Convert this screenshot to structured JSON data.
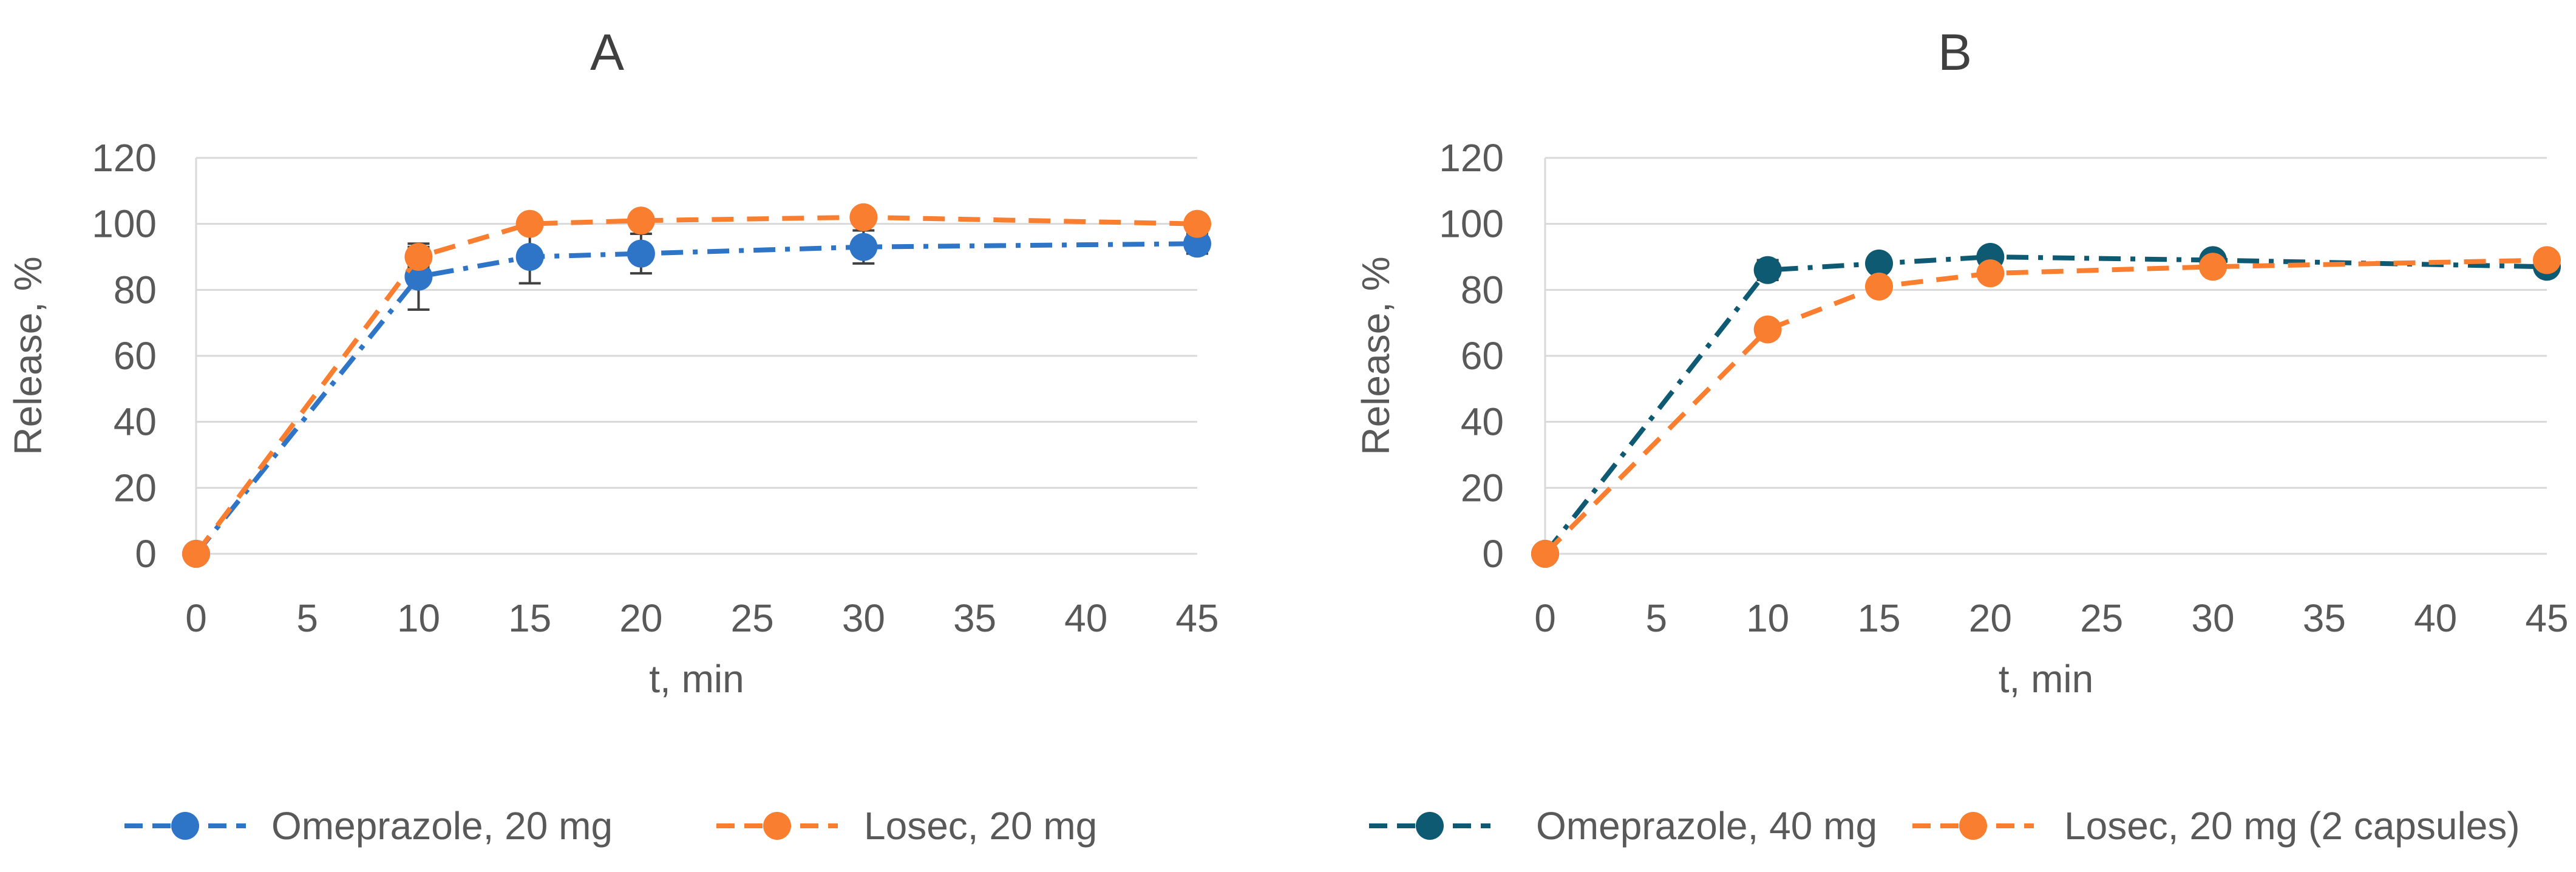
{
  "chart_data": [
    {
      "type": "line",
      "title": "A",
      "xlabel": "t, min",
      "ylabel": "Release, %",
      "xlim": [
        0,
        45
      ],
      "ylim": [
        0,
        120
      ],
      "xticks": [
        0,
        5,
        10,
        15,
        20,
        25,
        30,
        35,
        40,
        45
      ],
      "yticks": [
        0,
        20,
        40,
        60,
        80,
        100,
        120
      ],
      "grid": true,
      "legend_position": "bottom",
      "series": [
        {
          "name": "Omeprazole, 20 mg",
          "color": "#2e75c8",
          "line_style": "dash-dot",
          "x": [
            0,
            10,
            15,
            20,
            30,
            45
          ],
          "y": [
            0,
            84,
            90,
            91,
            93,
            94
          ],
          "error": [
            0,
            10,
            8,
            6,
            5,
            3
          ]
        },
        {
          "name": "Losec, 20 mg",
          "color": "#f97e30",
          "line_style": "dash",
          "x": [
            0,
            10,
            15,
            20,
            30,
            45
          ],
          "y": [
            0,
            90,
            100,
            101,
            102,
            100
          ],
          "error": [
            0,
            3,
            1,
            1,
            1,
            1
          ]
        }
      ]
    },
    {
      "type": "line",
      "title": "B",
      "xlabel": "t, min",
      "ylabel": "Release, %",
      "xlim": [
        0,
        45
      ],
      "ylim": [
        0,
        120
      ],
      "xticks": [
        0,
        5,
        10,
        15,
        20,
        25,
        30,
        35,
        40,
        45
      ],
      "yticks": [
        0,
        20,
        40,
        60,
        80,
        100,
        120
      ],
      "grid": true,
      "legend_position": "bottom",
      "series": [
        {
          "name": "Omeprazole, 40 mg",
          "color": "#0f5a73",
          "line_style": "dash-dot",
          "x": [
            0,
            10,
            15,
            20,
            30,
            45
          ],
          "y": [
            0,
            86,
            88,
            90,
            89,
            87
          ],
          "error": [
            0,
            3,
            2,
            2,
            1,
            1
          ]
        },
        {
          "name": "Losec, 20 mg (2 capsules)",
          "color": "#f97e30",
          "line_style": "dash",
          "x": [
            0,
            10,
            15,
            20,
            30,
            45
          ],
          "y": [
            0,
            68,
            81,
            85,
            87,
            89
          ],
          "error": [
            0,
            1,
            1,
            1,
            1,
            1
          ]
        }
      ]
    }
  ]
}
